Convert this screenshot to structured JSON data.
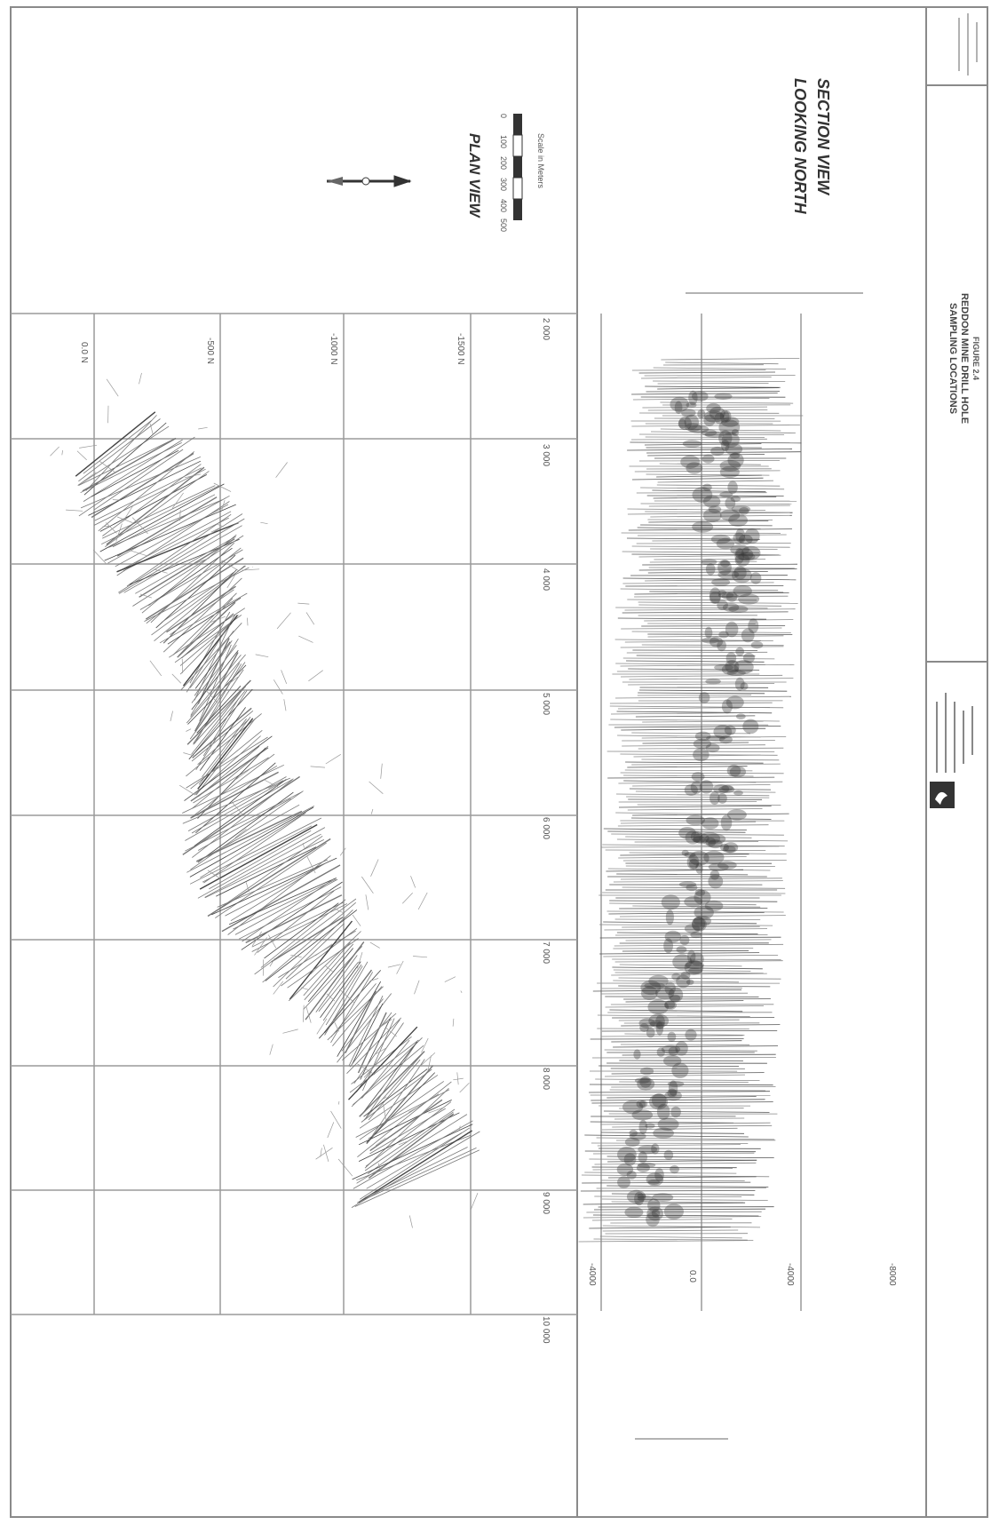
{
  "plan": {
    "title": "PLAN VIEW",
    "scale_label": "Scale in Meters",
    "scale_ticks": [
      "0",
      "100",
      "200",
      "300",
      "400",
      "500"
    ],
    "northing_labels": [
      "0.0 N",
      "-500 N",
      "-1000 N",
      "-1500 N"
    ],
    "easting_labels": [
      "2 000",
      "3 000",
      "4 000",
      "5 000",
      "6 000",
      "7 000",
      "8 000",
      "9 000",
      "10 000"
    ]
  },
  "section": {
    "title_lines": [
      "SECTION VIEW",
      "LOOKING NORTH"
    ],
    "elevation_labels": [
      "-4000",
      "0.0",
      "-4000",
      "-8000"
    ]
  },
  "title_block": {
    "figure": "FIGURE 2.4",
    "title_lines": [
      "REDDON MINE DRILL HOLE",
      "SAMPLING LOCATIONS"
    ],
    "company": "[illegible company block]"
  },
  "colors": {
    "frame": "#8a8a8a",
    "grid": "#9a9a9a",
    "hatch": "#6c6c6c",
    "ink": "#333333"
  }
}
